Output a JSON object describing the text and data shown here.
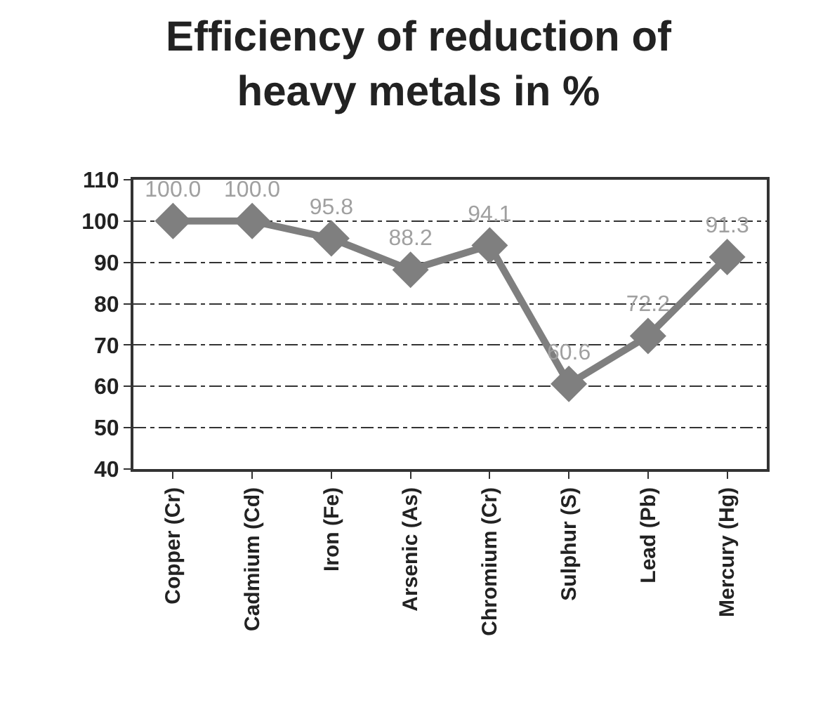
{
  "chart_data": {
    "type": "line",
    "title": "Efficiency of reduction of heavy metals in %",
    "categories": [
      "Copper (Cr)",
      "Cadmium (Cd)",
      "Iron (Fe)",
      "Arsenic (As)",
      "Chromium (Cr)",
      "Sulphur (S)",
      "Lead (Pb)",
      "Mercury (Hg)"
    ],
    "values": [
      100.0,
      100.0,
      95.8,
      88.2,
      94.1,
      60.6,
      72.2,
      91.3
    ],
    "value_labels": [
      "100.0",
      "100.0",
      "95.8",
      "88.2",
      "94.1",
      "60.6",
      "72.2",
      "91.3"
    ],
    "color": "#7f7f7f",
    "marker": "diamond",
    "line_style": "solid",
    "ylim": [
      40,
      110
    ],
    "yticks": [
      40,
      50,
      60,
      70,
      80,
      90,
      100,
      110
    ],
    "grid": "y",
    "legend": false
  }
}
